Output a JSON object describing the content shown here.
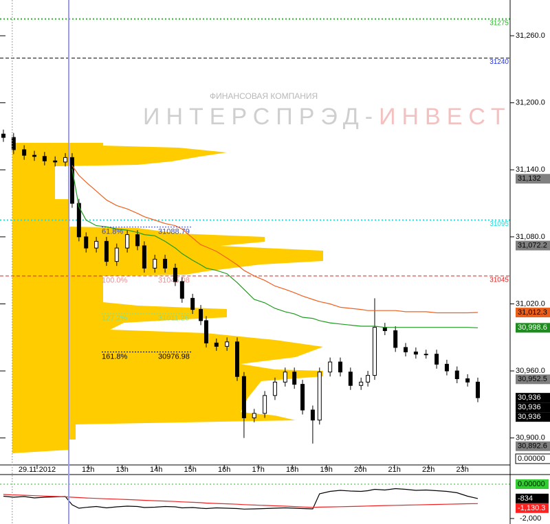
{
  "chart_data": [
    {
      "type": "candlestick",
      "watermark": {
        "company": "ФИНАНСОВАЯ КОМПАНИЯ",
        "name1": "ИНТЕРСПРЭД-",
        "name2": "ИНВЕСТ"
      },
      "xlim": [
        9.41,
        24.4
      ],
      "xticks": [
        {
          "value": 10.5,
          "label": "29.11.2012"
        },
        {
          "value": 12,
          "label": "12h"
        },
        {
          "value": 13,
          "label": "13h"
        },
        {
          "value": 14,
          "label": "14h"
        },
        {
          "value": 15,
          "label": "15h"
        },
        {
          "value": 16,
          "label": "16h"
        },
        {
          "value": 17,
          "label": "17h"
        },
        {
          "value": 18,
          "label": "18h"
        },
        {
          "value": 19,
          "label": "19h"
        },
        {
          "value": 20,
          "label": "20h"
        },
        {
          "value": 21,
          "label": "21h"
        },
        {
          "value": 22,
          "label": "22h"
        },
        {
          "value": 23,
          "label": "23h"
        }
      ],
      "ylim": [
        30874,
        31292
      ],
      "yticks": [
        {
          "value": 31260,
          "label": "31,260.0"
        },
        {
          "value": 31200,
          "label": "31,200.0"
        },
        {
          "value": 31140,
          "label": "31,140.0"
        },
        {
          "value": 31080,
          "label": "31,080.0"
        },
        {
          "value": 31020,
          "label": "31,020.0"
        },
        {
          "value": 30960,
          "label": "30,960.0"
        },
        {
          "value": 30900,
          "label": "30,900.0"
        }
      ],
      "x": [
        9.51,
        9.81,
        10.12,
        10.42,
        10.72,
        11.03,
        11.33,
        11.53,
        11.73,
        11.94,
        12.24,
        12.54,
        12.84,
        13.15,
        13.45,
        13.65,
        13.96,
        14.26,
        14.56,
        14.76,
        15.07,
        15.31,
        15.47,
        15.77,
        16.08,
        16.38,
        16.58,
        16.88,
        17.19,
        17.49,
        17.79,
        18.06,
        18.3,
        18.6,
        18.8,
        19.11,
        19.41,
        19.71,
        20.02,
        20.22,
        20.42,
        20.72,
        21.03,
        21.33,
        21.63,
        21.93,
        22.24,
        22.54,
        22.84,
        23.15,
        23.45
      ],
      "open": [
        31172,
        31169,
        31158,
        31153,
        31152,
        31148,
        31147,
        31151,
        31110,
        31080,
        31070,
        31076,
        31058,
        31070,
        31082,
        31072,
        31052,
        31060,
        31052,
        31040,
        31025,
        31015,
        31005,
        30985,
        30982,
        30986,
        30955,
        30918,
        30922,
        30938,
        30950,
        30959,
        30948,
        30925,
        30916,
        30959,
        30968,
        30959,
        30947,
        30950,
        30956,
        30999,
        30996,
        30981,
        30977,
        30975,
        30975,
        30966,
        30960,
        30953,
        30950
      ],
      "high": [
        31176,
        31173,
        31162,
        31157,
        31156,
        31152,
        31155,
        31155,
        31114,
        31084,
        31080,
        31080,
        31074,
        31086,
        31086,
        31076,
        31064,
        31064,
        31056,
        31044,
        31029,
        31019,
        31009,
        30989,
        30990,
        30990,
        30959,
        30926,
        30942,
        30954,
        30963,
        30963,
        30952,
        30929,
        30963,
        30972,
        30972,
        30963,
        30954,
        30960,
        31025,
        31003,
        31000,
        30985,
        30981,
        30979,
        30979,
        30970,
        30964,
        30957,
        30954
      ],
      "low": [
        31165,
        31154,
        31149,
        31148,
        31144,
        31143,
        31143,
        31106,
        31076,
        31066,
        31066,
        31054,
        31054,
        31066,
        31068,
        31048,
        31048,
        31048,
        31036,
        31021,
        31011,
        31001,
        30981,
        30978,
        30978,
        30951,
        30900,
        30914,
        30918,
        30934,
        30946,
        30944,
        30921,
        30895,
        30912,
        30955,
        30955,
        30943,
        30943,
        30946,
        30952,
        30992,
        30977,
        30973,
        30971,
        30971,
        30962,
        30956,
        30949,
        30946,
        30932
      ],
      "close": [
        31169,
        31158,
        31153,
        31152,
        31148,
        31147,
        31151,
        31110,
        31080,
        31070,
        31076,
        31058,
        31070,
        31082,
        31072,
        31052,
        31060,
        31052,
        31040,
        31025,
        31015,
        31005,
        30985,
        30982,
        30986,
        30955,
        30918,
        30922,
        30938,
        30950,
        30959,
        30948,
        30925,
        30916,
        30959,
        30968,
        30959,
        30947,
        30950,
        30956,
        30999,
        30996,
        30981,
        30977,
        30975,
        30975,
        30966,
        30960,
        30953,
        30950,
        30936
      ],
      "series": [
        {
          "color": "#f06020",
          "values": [
            null,
            null,
            null,
            null,
            null,
            null,
            null,
            31144,
            31135,
            31129,
            31121,
            31113,
            31108,
            31105,
            31101,
            31098,
            31095,
            31092,
            31090,
            31087,
            31079,
            31073,
            31071,
            31067,
            31061,
            31055,
            31050,
            31045,
            31041,
            31036,
            31033,
            31030,
            31027,
            31024,
            31022,
            31020,
            31017,
            31016,
            31015,
            31014,
            31014,
            31014,
            31014,
            31013,
            31013,
            31013,
            31012,
            31012,
            31012,
            31012,
            31012.3
          ]
        },
        {
          "color": "#1e9a1e",
          "values": [
            null,
            null,
            null,
            null,
            null,
            null,
            null,
            31141,
            31107,
            31095,
            31090,
            31089,
            31087,
            31086,
            31084,
            31082,
            31081,
            31076,
            31070,
            31065,
            31059,
            31055,
            31052,
            31050,
            31047,
            31039,
            31033,
            31024,
            31021,
            31016,
            31013,
            31011,
            31008,
            31007,
            31005,
            31003,
            31002,
            31001,
            31000,
            31000,
            31000,
            30999,
            30999,
            30999,
            30999,
            30999,
            30999,
            30999,
            30999,
            30999,
            30998.6
          ]
        }
      ],
      "levels": [
        {
          "value": 31275,
          "color": "#22bb22"
        },
        {
          "value": 31240,
          "color": "#2233dd"
        },
        {
          "value": 31095,
          "color": "#22dddd"
        },
        {
          "value": 31045,
          "color": "#dd2222"
        }
      ],
      "fib_levels": [
        {
          "ratio": "61.8%",
          "value": 31088.79,
          "color": "#3344cc"
        },
        {
          "ratio": "100.0%",
          "value": 31045.08,
          "color": "#e89090"
        },
        {
          "ratio": "127.2%",
          "value": 31011.26,
          "color": "#88dd88"
        },
        {
          "ratio": "161.8%",
          "value": 30976.98,
          "color": "#000000"
        }
      ],
      "vlines": [
        {
          "value": 9.77,
          "color": "#999999"
        },
        {
          "value": 11.43,
          "color": "#9999ff"
        }
      ],
      "tags": [
        {
          "value": 31132,
          "label": "31,132",
          "color": "#808080"
        },
        {
          "value": 31072.2,
          "label": "31,072.2",
          "color": "#808080"
        },
        {
          "value": 31012.3,
          "label": "31,012.3",
          "color": "#e8601c"
        },
        {
          "value": 30998.6,
          "label": "30,998.6",
          "color": "#1e8c1e"
        },
        {
          "value": 30952.5,
          "label": "30,952.5",
          "color": "#808080"
        },
        {
          "value": 30936,
          "label": "30,936",
          "color": "#000000"
        },
        {
          "value": 30936,
          "label": "30,936",
          "color": "#000000"
        },
        {
          "value": 30936,
          "label": "30,936",
          "color": "#000000"
        },
        {
          "value": 30892.6,
          "label": "30,892.6",
          "color": "#808080"
        }
      ],
      "volume_label": "0.00000"
    },
    {
      "type": "line",
      "ylim": [
        -2320,
        520
      ],
      "yticks": [
        {
          "value": -2000,
          "label": "-2,000"
        }
      ],
      "levels": [
        {
          "value": 0,
          "color": "#22bb22"
        }
      ],
      "series": [
        {
          "color": "#000000",
          "values": [
            -700,
            -760,
            -720,
            -800,
            -760,
            -740,
            -720,
            -1200,
            -1400,
            -1350,
            -1300,
            -1380,
            -1320,
            -1280,
            -1300,
            -1360,
            -1340,
            -1300,
            -1320,
            -1380,
            -1360,
            -1400,
            -1420,
            -1380,
            -1400,
            -1420,
            -1450,
            -1440,
            -1420,
            -1400,
            -1380,
            -1400,
            -1420,
            -1440,
            -560,
            -420,
            -360,
            -400,
            -420,
            -380,
            -300,
            -340,
            -260,
            -300,
            -360,
            -340,
            -380,
            -420,
            -500,
            -700,
            -834
          ]
        },
        {
          "color": "#ee2222",
          "values": [
            -600,
            -623,
            -645,
            -668,
            -691,
            -714,
            -736,
            -759,
            -782,
            -805,
            -827,
            -850,
            -873,
            -895,
            -918,
            -941,
            -964,
            -986,
            -1009,
            -1032,
            -1055,
            -1077,
            -1100,
            -1123,
            -1145,
            -1168,
            -1191,
            -1214,
            -1236,
            -1259,
            -1282,
            -1305,
            -1327,
            -1350,
            -1337,
            -1324,
            -1311,
            -1298,
            -1285,
            -1272,
            -1259,
            -1246,
            -1233,
            -1220,
            -1207,
            -1194,
            -1181,
            -1168,
            -1155,
            -1142,
            -1130.3
          ]
        }
      ],
      "tags": [
        {
          "value": 0,
          "label": "0.00000",
          "color": "#33cc33"
        },
        {
          "value": -834,
          "label": "-834",
          "color": "#000000"
        },
        {
          "value": -1130.3,
          "label": "-1,130.3",
          "color": "#ff2020"
        }
      ]
    }
  ]
}
